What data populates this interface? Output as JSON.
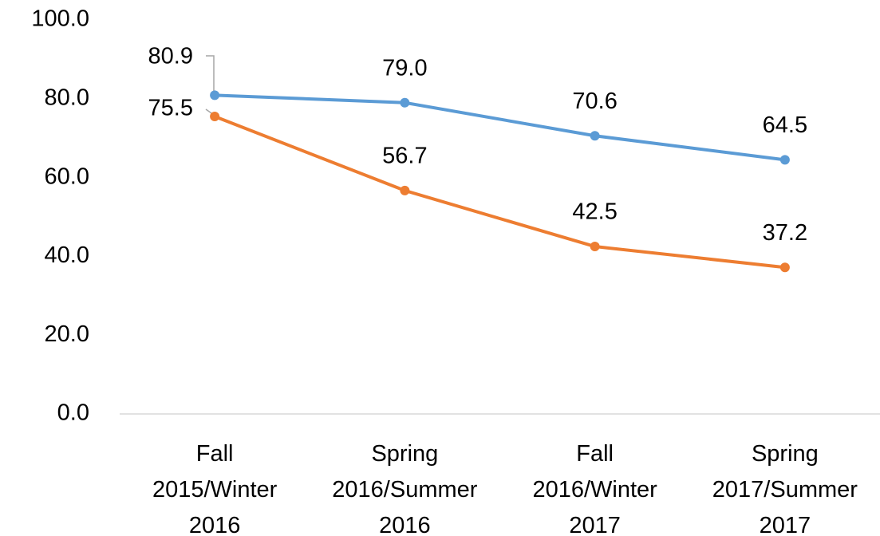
{
  "chart_data": {
    "type": "line",
    "categories": [
      "Fall 2015/Winter 2016",
      "Spring 2016/Summer 2016",
      "Fall 2016/Winter 2017",
      "Spring 2017/Summer 2017"
    ],
    "series": [
      {
        "color": "#5b9bd5",
        "values": [
          80.9,
          79.0,
          70.6,
          64.5
        ],
        "value_labels": [
          "80.9",
          "79.0",
          "70.6",
          "64.5"
        ]
      },
      {
        "color": "#ed7d31",
        "values": [
          75.5,
          56.7,
          42.5,
          37.2
        ],
        "value_labels": [
          "75.5",
          "56.7",
          "42.5",
          "37.2"
        ]
      }
    ],
    "ylim": [
      0,
      100
    ],
    "yticks": [
      {
        "value": 0,
        "label": "0.0"
      },
      {
        "value": 20,
        "label": "20.0"
      },
      {
        "value": 40,
        "label": "40.0"
      },
      {
        "value": 60,
        "label": "60.0"
      },
      {
        "value": 80,
        "label": "80.0"
      },
      {
        "value": 100,
        "label": "100.0"
      }
    ],
    "grid": false
  }
}
